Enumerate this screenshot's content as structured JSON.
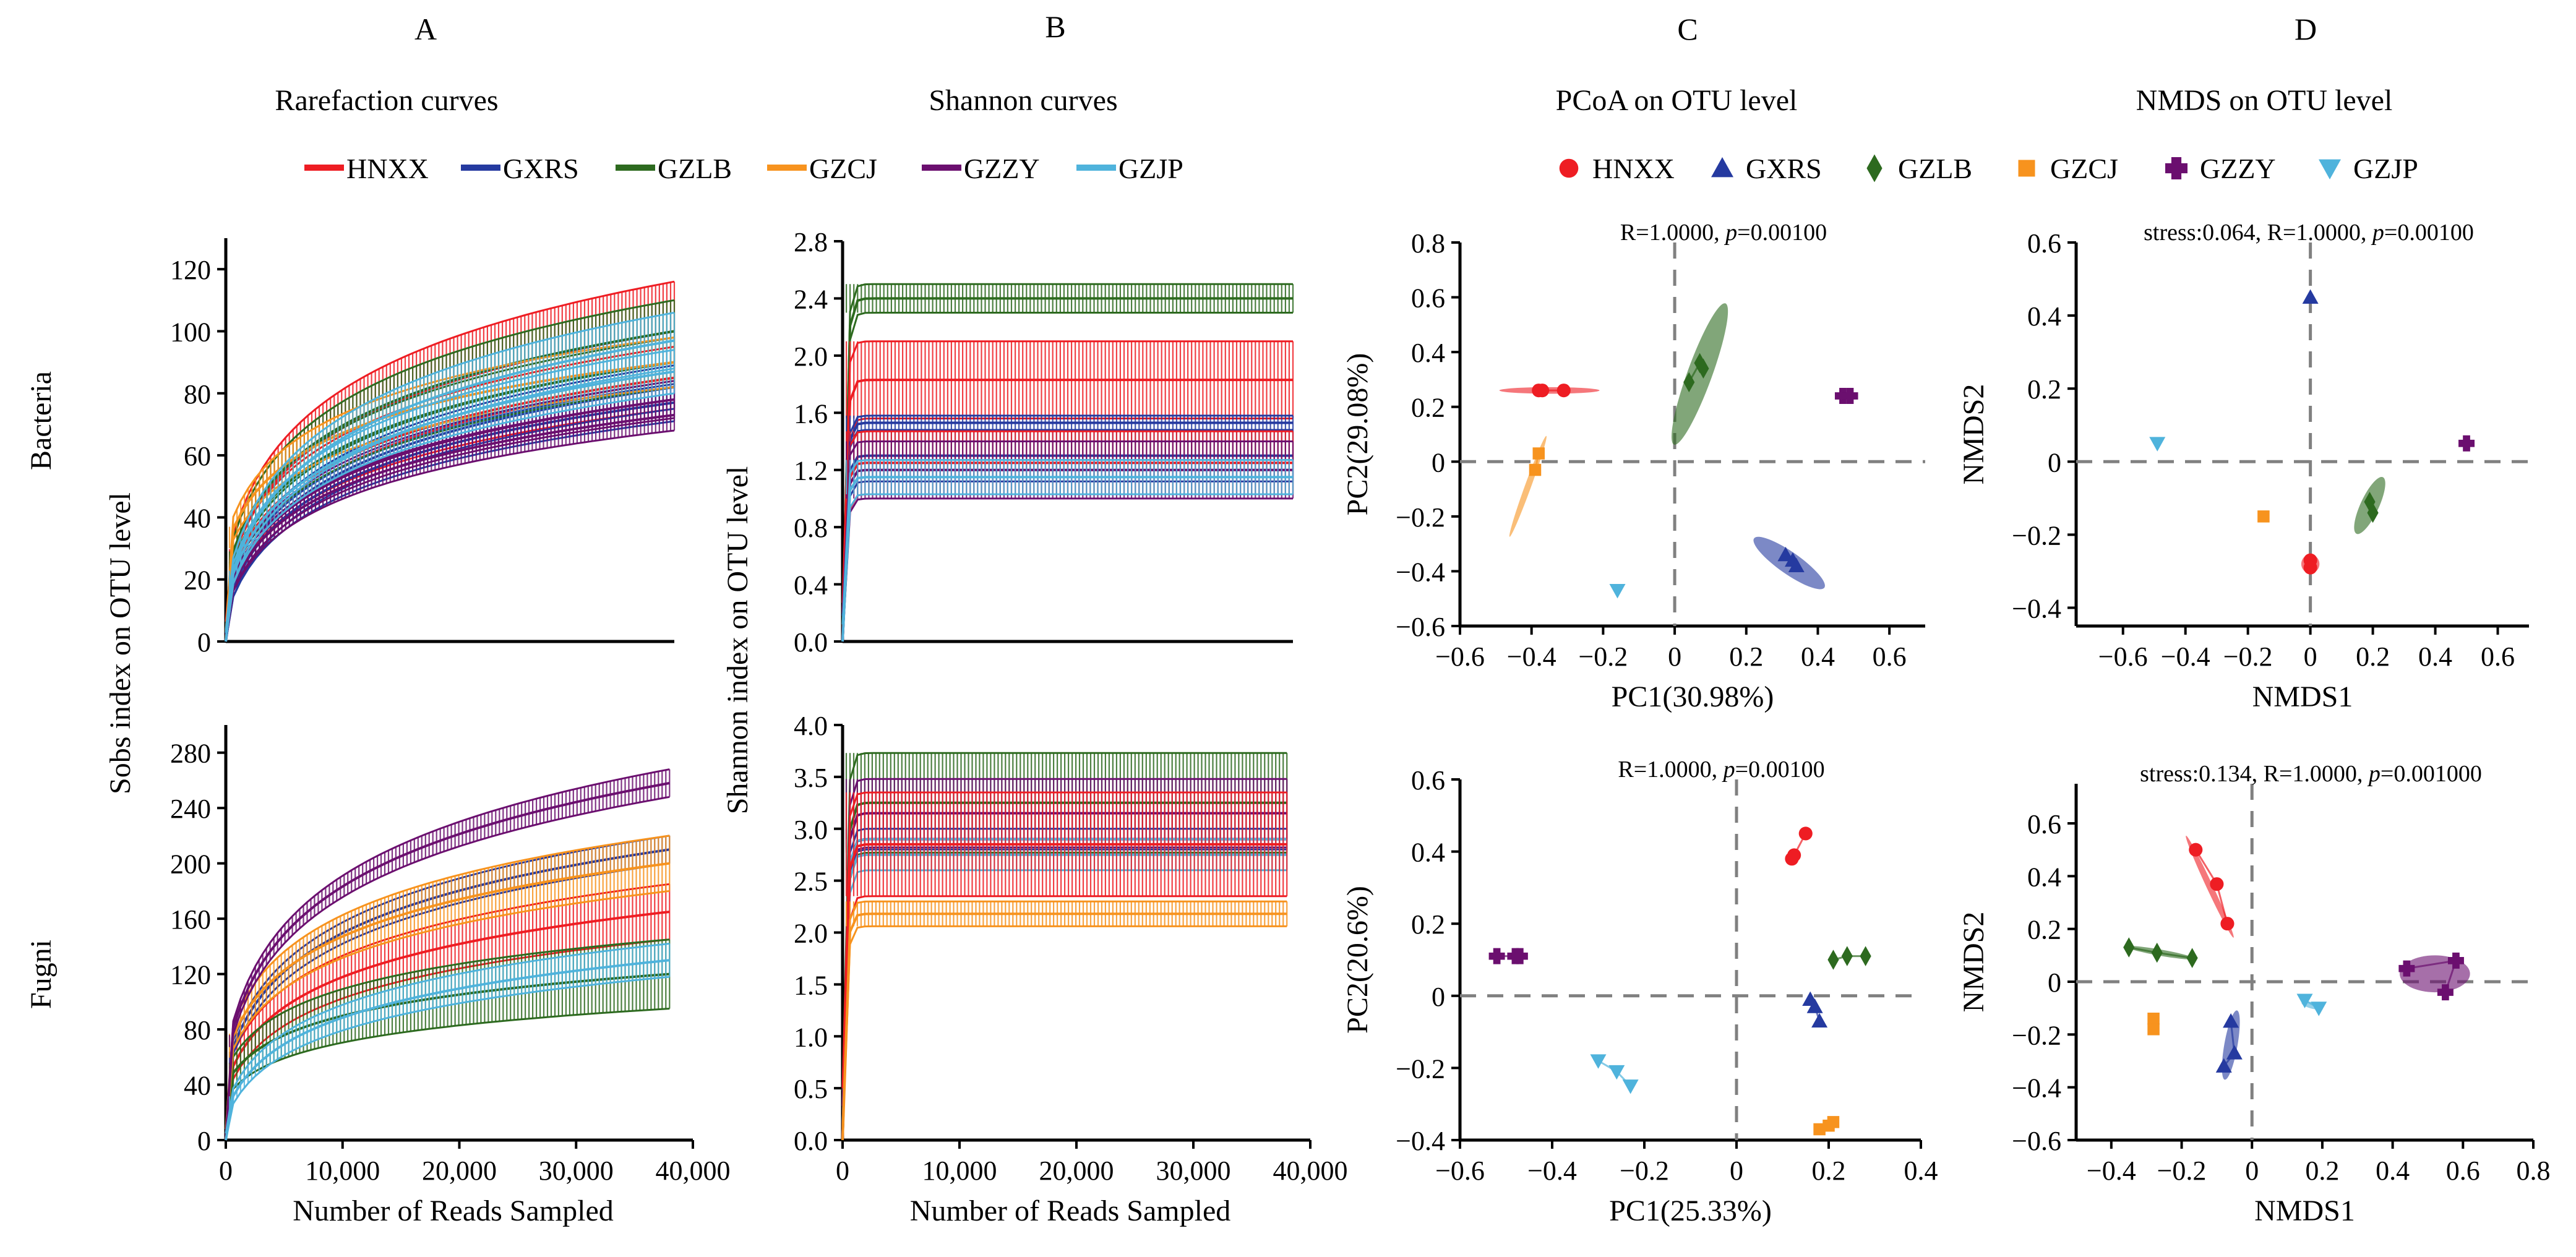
{
  "figure": {
    "column_letters": [
      "A",
      "B",
      "C",
      "D"
    ],
    "column_titles": [
      "Rarefaction curves",
      "Shannon curves",
      "PCoA on OTU level",
      "NMDS on OTU level"
    ],
    "row_labels": [
      "Bacteria",
      "Fugni"
    ]
  },
  "legend": {
    "groups": [
      "HNXX",
      "GXRS",
      "GZLB",
      "GZCJ",
      "GZZY",
      "GZJP"
    ],
    "colors": {
      "HNXX": "#ee1d23",
      "GXRS": "#253aa0",
      "GZLB": "#2d6a1f",
      "GZCJ": "#f7931e",
      "GZZY": "#6b0f6f",
      "GZJP": "#4fb3dc"
    },
    "line_symbol": "line-swatch",
    "marker_symbols": {
      "HNXX": "circle",
      "GXRS": "triangle-up",
      "GZLB": "diamond",
      "GZCJ": "square",
      "GZZY": "plus",
      "GZJP": "triangle-down"
    }
  },
  "chart_data": [
    {
      "id": "A1",
      "type": "line",
      "title": "Rarefaction curves",
      "row": "Bacteria",
      "ylabel": "Sobs index on OTU level",
      "xlabel": "",
      "xlim": [
        0,
        38000
      ],
      "ylim": [
        0,
        130
      ],
      "yticks": [
        0,
        20,
        40,
        60,
        80,
        100,
        120
      ],
      "ytick_labels": [
        "0",
        "20",
        "40",
        "60",
        "80",
        "100",
        "120"
      ],
      "xticks": [],
      "xtick_labels": [],
      "series": [
        {
          "name": "HNXX",
          "color": "#ee1d23",
          "mean_end": 100,
          "err_end": 16,
          "start": 18
        },
        {
          "name": "HNXX",
          "color": "#ee1d23",
          "mean_end": 85,
          "err_end": 10,
          "start": 16
        },
        {
          "name": "GXRS",
          "color": "#253aa0",
          "mean_end": 82,
          "err_end": 7,
          "start": 10
        },
        {
          "name": "GXRS",
          "color": "#253aa0",
          "mean_end": 77,
          "err_end": 6,
          "start": 10
        },
        {
          "name": "GZLB",
          "color": "#2d6a1f",
          "mean_end": 100,
          "err_end": 10,
          "start": 20
        },
        {
          "name": "GZLB",
          "color": "#2d6a1f",
          "mean_end": 90,
          "err_end": 8,
          "start": 18
        },
        {
          "name": "GZCJ",
          "color": "#f7931e",
          "mean_end": 90,
          "err_end": 8,
          "start": 30
        },
        {
          "name": "GZZY",
          "color": "#6b0f6f",
          "mean_end": 78,
          "err_end": 6,
          "start": 12
        },
        {
          "name": "GZZY",
          "color": "#6b0f6f",
          "mean_end": 73,
          "err_end": 5,
          "start": 12
        },
        {
          "name": "GZJP",
          "color": "#4fb3dc",
          "mean_end": 97,
          "err_end": 9,
          "start": 14
        },
        {
          "name": "GZJP",
          "color": "#4fb3dc",
          "mean_end": 87,
          "err_end": 7,
          "start": 14
        }
      ]
    },
    {
      "id": "A2",
      "type": "line",
      "row": "Fugni",
      "ylabel": "",
      "xlabel": "Number of Reads Sampled",
      "xlim": [
        0,
        40000
      ],
      "ylim": [
        0,
        300
      ],
      "yticks": [
        0,
        40,
        80,
        120,
        160,
        200,
        240,
        280
      ],
      "ytick_labels": [
        "0",
        "40",
        "80",
        "120",
        "160",
        "200",
        "240",
        "280"
      ],
      "xticks": [
        0,
        10000,
        20000,
        30000,
        40000
      ],
      "xtick_labels": [
        "0",
        "10,000",
        "20,000",
        "30,000",
        "40,000"
      ],
      "series": [
        {
          "name": "HNXX",
          "color": "#ee1d23",
          "mean_end": 165,
          "err_end": 20,
          "start": 40
        },
        {
          "name": "GXRS",
          "color": "#253aa0",
          "mean_end": 210,
          "err_end": 10,
          "start": 50
        },
        {
          "name": "GZLB",
          "color": "#2d6a1f",
          "mean_end": 120,
          "err_end": 25,
          "start": 40
        },
        {
          "name": "GZCJ",
          "color": "#f7931e",
          "mean_end": 200,
          "err_end": 20,
          "start": 60
        },
        {
          "name": "GZZY",
          "color": "#6b0f6f",
          "mean_end": 258,
          "err_end": 10,
          "start": 60
        },
        {
          "name": "GZJP",
          "color": "#4fb3dc",
          "mean_end": 130,
          "err_end": 12,
          "start": 20
        }
      ]
    },
    {
      "id": "B1",
      "type": "line",
      "title": "Shannon curves",
      "row": "Bacteria",
      "ylabel": "Shannon index on OTU level",
      "xlabel": "",
      "xlim": [
        0,
        38000
      ],
      "ylim": [
        0,
        2.8
      ],
      "yticks": [
        0,
        0.4,
        0.8,
        1.2,
        1.6,
        2.0,
        2.4,
        2.8
      ],
      "ytick_labels": [
        "0.0",
        "0.4",
        "0.8",
        "1.2",
        "1.6",
        "2.0",
        "2.4",
        "2.8"
      ],
      "xticks": [],
      "xtick_labels": [],
      "series": [
        {
          "name": "GZLB",
          "color": "#2d6a1f",
          "mean": 2.4,
          "err": 0.1
        },
        {
          "name": "HNXX",
          "color": "#ee1d23",
          "mean": 1.83,
          "err": 0.27
        },
        {
          "name": "GXRS",
          "color": "#253aa0",
          "mean": 1.53,
          "err": 0.05
        },
        {
          "name": "GXRS",
          "color": "#253aa0",
          "mean": 1.3,
          "err": 0.18
        },
        {
          "name": "HNXX",
          "color": "#ee1d23",
          "mean": 1.25,
          "err": 0.22
        },
        {
          "name": "GZZY",
          "color": "#6b0f6f",
          "mean": 1.2,
          "err": 0.2
        },
        {
          "name": "GZJP",
          "color": "#4fb3dc",
          "mean": 1.15,
          "err": 0.12
        }
      ]
    },
    {
      "id": "B2",
      "type": "line",
      "row": "Fugni",
      "ylabel": "",
      "xlabel": "Number of Reads Sampled",
      "xlim": [
        0,
        40000
      ],
      "ylim": [
        0,
        4.0
      ],
      "yticks": [
        0,
        0.5,
        1.0,
        1.5,
        2.0,
        2.5,
        3.0,
        3.5,
        4.0
      ],
      "ytick_labels": [
        "0.0",
        "0.5",
        "1.0",
        "1.5",
        "2.0",
        "2.5",
        "3.0",
        "3.5",
        "4.0"
      ],
      "xticks": [
        0,
        10000,
        20000,
        30000,
        40000
      ],
      "xtick_labels": [
        "0",
        "10,000",
        "20,000",
        "30,000",
        "40,000"
      ],
      "series": [
        {
          "name": "GZLB",
          "color": "#2d6a1f",
          "mean": 3.25,
          "err": 0.48
        },
        {
          "name": "GZZY",
          "color": "#6b0f6f",
          "mean": 3.15,
          "err": 0.33
        },
        {
          "name": "GXRS",
          "color": "#253aa0",
          "mean": 2.9,
          "err": 0.1
        },
        {
          "name": "GZJP",
          "color": "#4fb3dc",
          "mean": 2.75,
          "err": 0.15
        },
        {
          "name": "HNXX",
          "color": "#ee1d23",
          "mean": 2.85,
          "err": 0.5
        },
        {
          "name": "GZCJ",
          "color": "#f7931e",
          "mean": 2.18,
          "err": 0.12
        }
      ]
    },
    {
      "id": "C1",
      "type": "scatter",
      "title": "PCoA on OTU level",
      "row": "Bacteria",
      "annotation": "R=1.0000, p=0.00100",
      "xlabel": "PC1(30.98%)",
      "ylabel": "PC2(29.08%)",
      "xlim": [
        -0.6,
        0.7
      ],
      "ylim": [
        -0.6,
        0.8
      ],
      "xticks": [
        -0.6,
        -0.4,
        -0.2,
        0,
        0.2,
        0.4,
        0.6
      ],
      "xtick_labels": [
        "−0.6",
        "−0.4",
        "−0.2",
        "0",
        "0.2",
        "0.4",
        "0.6"
      ],
      "yticks": [
        -0.6,
        -0.4,
        -0.2,
        0,
        0.2,
        0.4,
        0.6,
        0.8
      ],
      "ytick_labels": [
        "−0.6",
        "−0.4",
        "−0.2",
        "0",
        "0.2",
        "0.4",
        "0.6",
        "0.8"
      ],
      "ellipses": [
        {
          "group": "HNXX",
          "cx": -0.35,
          "cy": 0.26,
          "rx": 0.14,
          "ry": 0.012,
          "angle": 0
        },
        {
          "group": "GZLB",
          "cx": 0.07,
          "cy": 0.32,
          "rx": 0.21,
          "ry": 0.045,
          "angle": 70
        },
        {
          "group": "GXRS",
          "cx": 0.32,
          "cy": -0.37,
          "rx": 0.12,
          "ry": 0.04,
          "angle": -35
        },
        {
          "group": "GZCJ",
          "cx": -0.41,
          "cy": -0.09,
          "rx": 0.15,
          "ry": 0.006,
          "angle": 70
        }
      ],
      "series": [
        {
          "name": "HNXX",
          "points": [
            [
              -0.37,
              0.26
            ],
            [
              -0.38,
              0.26
            ],
            [
              -0.31,
              0.26
            ]
          ]
        },
        {
          "name": "GXRS",
          "points": [
            [
              0.31,
              -0.34
            ],
            [
              0.33,
              -0.36
            ],
            [
              0.34,
              -0.38
            ]
          ]
        },
        {
          "name": "GZLB",
          "points": [
            [
              0.04,
              0.29
            ],
            [
              0.07,
              0.36
            ],
            [
              0.08,
              0.34
            ]
          ]
        },
        {
          "name": "GZCJ",
          "points": [
            [
              -0.38,
              0.03
            ],
            [
              -0.39,
              -0.03
            ]
          ]
        },
        {
          "name": "GZZY",
          "points": [
            [
              0.47,
              0.24
            ],
            [
              0.49,
              0.24
            ]
          ]
        },
        {
          "name": "GZJP",
          "points": [
            [
              -0.16,
              -0.47
            ]
          ]
        }
      ]
    },
    {
      "id": "C2",
      "type": "scatter",
      "row": "Fugni",
      "annotation": "R=1.0000, p=0.00100",
      "xlabel": "PC1(25.33%)",
      "ylabel": "PC2(20.6%)",
      "xlim": [
        -0.6,
        0.4
      ],
      "ylim": [
        -0.4,
        0.6
      ],
      "xticks": [
        -0.6,
        -0.4,
        -0.2,
        0,
        0.2,
        0.4
      ],
      "xtick_labels": [
        "−0.6",
        "−0.4",
        "−0.2",
        "0",
        "0.2",
        "0.4"
      ],
      "yticks": [
        -0.4,
        -0.2,
        0,
        0.2,
        0.4,
        0.6
      ],
      "ytick_labels": [
        "−0.4",
        "−0.2",
        "0",
        "0.2",
        "0.4",
        "0.6"
      ],
      "ellipses": [],
      "series": [
        {
          "name": "HNXX",
          "points": [
            [
              0.12,
              0.38
            ],
            [
              0.125,
              0.39
            ],
            [
              0.15,
              0.45
            ]
          ]
        },
        {
          "name": "GXRS",
          "points": [
            [
              0.16,
              -0.01
            ],
            [
              0.17,
              -0.03
            ],
            [
              0.18,
              -0.07
            ]
          ]
        },
        {
          "name": "GZLB",
          "points": [
            [
              0.21,
              0.1
            ],
            [
              0.24,
              0.11
            ],
            [
              0.28,
              0.11
            ]
          ]
        },
        {
          "name": "GZCJ",
          "points": [
            [
              0.18,
              -0.37
            ],
            [
              0.2,
              -0.36
            ],
            [
              0.21,
              -0.35
            ]
          ]
        },
        {
          "name": "GZZY",
          "points": [
            [
              -0.52,
              0.11
            ],
            [
              -0.48,
              0.11
            ],
            [
              -0.47,
              0.11
            ]
          ]
        },
        {
          "name": "GZJP",
          "points": [
            [
              -0.3,
              -0.18
            ],
            [
              -0.26,
              -0.21
            ],
            [
              -0.23,
              -0.25
            ]
          ]
        }
      ]
    },
    {
      "id": "D1",
      "type": "scatter",
      "title": "NMDS on OTU level",
      "row": "Bacteria",
      "annotation": "stress:0.064, R=1.0000, p=0.00100",
      "xlabel": "NMDS1",
      "ylabel": "NMDS2",
      "xlim": [
        -0.75,
        0.7
      ],
      "ylim": [
        -0.45,
        0.6
      ],
      "xticks": [
        -0.6,
        -0.4,
        -0.2,
        0,
        0.2,
        0.4,
        0.6
      ],
      "xtick_labels": [
        "−0.6",
        "−0.4",
        "−0.2",
        "0",
        "0.2",
        "0.4",
        "0.6"
      ],
      "yticks": [
        -0.4,
        -0.2,
        0,
        0.2,
        0.4,
        0.6
      ],
      "ytick_labels": [
        "−0.4",
        "−0.2",
        "0",
        "0.2",
        "0.4",
        "0.6"
      ],
      "ellipses": [
        {
          "group": "GZLB",
          "cx": 0.19,
          "cy": -0.12,
          "rx": 0.1,
          "ry": 0.025,
          "angle": 65
        },
        {
          "group": "HNXX",
          "cx": 0.0,
          "cy": -0.28,
          "rx": 0.03,
          "ry": 0.025,
          "angle": 90
        }
      ],
      "series": [
        {
          "name": "HNXX",
          "points": [
            [
              0.0,
              -0.27
            ],
            [
              0.0,
              -0.29
            ]
          ]
        },
        {
          "name": "GXRS",
          "points": [
            [
              0.0,
              0.45
            ]
          ]
        },
        {
          "name": "GZLB",
          "points": [
            [
              0.19,
              -0.11
            ],
            [
              0.2,
              -0.14
            ]
          ]
        },
        {
          "name": "GZCJ",
          "points": [
            [
              -0.15,
              -0.15
            ]
          ]
        },
        {
          "name": "GZZY",
          "points": [
            [
              0.5,
              0.05
            ]
          ]
        },
        {
          "name": "GZJP",
          "points": [
            [
              -0.49,
              0.05
            ]
          ]
        }
      ]
    },
    {
      "id": "D2",
      "type": "scatter",
      "row": "Fugni",
      "annotation": "stress:0.134, R=1.0000, p=0.001000",
      "xlabel": "NMDS1",
      "ylabel": "NMDS2",
      "xlim": [
        -0.5,
        0.8
      ],
      "ylim": [
        -0.6,
        0.75
      ],
      "xticks": [
        -0.4,
        -0.2,
        0,
        0.2,
        0.4,
        0.6,
        0.8
      ],
      "xtick_labels": [
        "−0.4",
        "−0.2",
        "0",
        "0.2",
        "0.4",
        "0.6",
        "0.8"
      ],
      "yticks": [
        -0.6,
        -0.4,
        -0.2,
        0,
        0.2,
        0.4,
        0.6
      ],
      "ytick_labels": [
        "−0.6",
        "−0.4",
        "−0.2",
        "0",
        "0.2",
        "0.4",
        "0.6"
      ],
      "ellipses": [
        {
          "group": "HNXX",
          "cx": -0.12,
          "cy": 0.36,
          "rx": 0.16,
          "ry": 0.012,
          "angle": -65
        },
        {
          "group": "GZZY",
          "cx": 0.52,
          "cy": 0.03,
          "rx": 0.1,
          "ry": 0.07,
          "angle": 0
        },
        {
          "group": "GXRS",
          "cx": -0.06,
          "cy": -0.24,
          "rx": 0.1,
          "ry": 0.025,
          "angle": 80
        },
        {
          "group": "GZLB",
          "cx": -0.26,
          "cy": 0.11,
          "rx": 0.1,
          "ry": 0.004,
          "angle": -10
        },
        {
          "group": "GZJP",
          "cx": 0.17,
          "cy": -0.09,
          "rx": 0.03,
          "ry": 0.004,
          "angle": -15
        }
      ],
      "series": [
        {
          "name": "HNXX",
          "points": [
            [
              -0.16,
              0.5
            ],
            [
              -0.1,
              0.37
            ],
            [
              -0.07,
              0.22
            ]
          ]
        },
        {
          "name": "GXRS",
          "points": [
            [
              -0.06,
              -0.15
            ],
            [
              -0.05,
              -0.27
            ],
            [
              -0.08,
              -0.32
            ]
          ]
        },
        {
          "name": "GZLB",
          "points": [
            [
              -0.35,
              0.13
            ],
            [
              -0.27,
              0.11
            ],
            [
              -0.17,
              0.09
            ]
          ]
        },
        {
          "name": "GZCJ",
          "points": [
            [
              -0.28,
              -0.14
            ],
            [
              -0.28,
              -0.18
            ]
          ]
        },
        {
          "name": "GZZY",
          "points": [
            [
              0.44,
              0.05
            ],
            [
              0.58,
              0.08
            ],
            [
              0.55,
              -0.04
            ]
          ]
        },
        {
          "name": "GZJP",
          "points": [
            [
              0.15,
              -0.07
            ],
            [
              0.19,
              -0.1
            ]
          ]
        }
      ]
    }
  ]
}
